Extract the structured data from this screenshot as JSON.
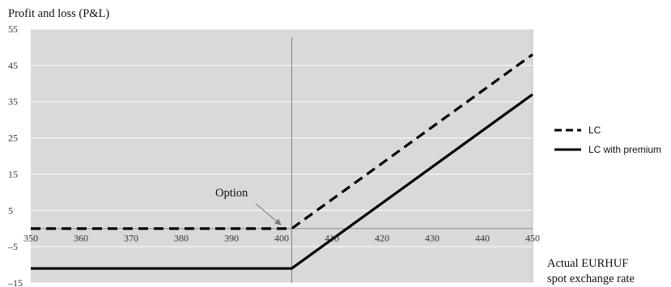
{
  "chart_data": {
    "type": "line",
    "ylabel": "Profit and loss (P&L)",
    "xlabel_lines": [
      "Actual EURHUF",
      "spot exchange rate"
    ],
    "xlim": [
      350,
      450
    ],
    "ylim": [
      -15,
      55
    ],
    "xticks": [
      350,
      360,
      370,
      380,
      390,
      400,
      410,
      420,
      430,
      440,
      450
    ],
    "xtick_labels": [
      "350",
      "360",
      "370",
      "380",
      "390",
      "400",
      "410",
      "420",
      "430",
      "440",
      "450"
    ],
    "yticks": [
      -15,
      -5,
      5,
      15,
      25,
      35,
      45,
      55
    ],
    "ytick_labels": [
      "–15",
      "–5",
      "5",
      "15",
      "25",
      "35",
      "45",
      "55"
    ],
    "grid": true,
    "legend_position": "right",
    "strike_line_x": 402,
    "series": [
      {
        "name": "LC",
        "style": "dashed",
        "x": [
          350,
          402,
          450
        ],
        "y": [
          0,
          0,
          48
        ]
      },
      {
        "name": "LC with premium",
        "style": "solid",
        "x": [
          350,
          402,
          450
        ],
        "y": [
          -11,
          -11,
          37
        ]
      }
    ],
    "annotations": [
      {
        "text": "Option",
        "points_to_x": 402,
        "points_to_y": 0
      }
    ],
    "colors": {
      "plot_background": "#d9d9d9",
      "grid": "#ffffff",
      "line": "#000000"
    }
  }
}
